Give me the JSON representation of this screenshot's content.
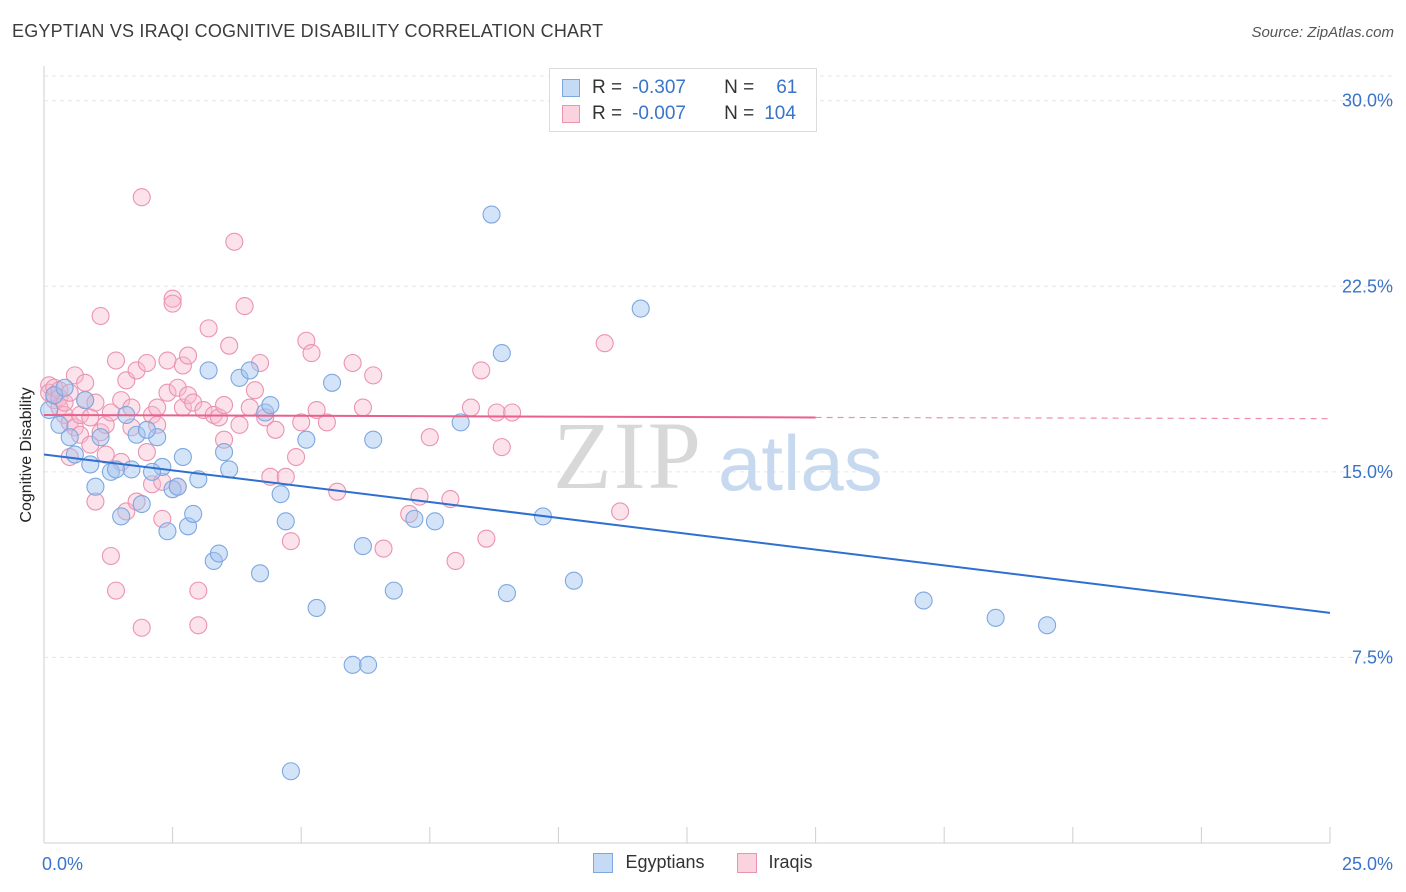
{
  "title": "EGYPTIAN VS IRAQI COGNITIVE DISABILITY CORRELATION CHART",
  "source": "Source: ZipAtlas.com",
  "watermark": {
    "zip": "ZIP",
    "atlas": "atlas"
  },
  "stats": [
    {
      "r_label": "R =",
      "r_value": "-0.307",
      "n_label": "N =",
      "n_value": "61",
      "color": "#a9c8f0",
      "border": "#6c9ee0"
    },
    {
      "r_label": "R =",
      "r_value": "-0.007",
      "n_label": "N =",
      "n_value": "104",
      "color": "#f8c0d2",
      "border": "#e88aa8"
    }
  ],
  "legend": [
    {
      "label": "Egyptians",
      "color": "#c5daf5",
      "border": "#7ea7e0"
    },
    {
      "label": "Iraqis",
      "color": "#fbd3df",
      "border": "#eb93b1"
    }
  ],
  "chart_data": {
    "type": "scatter",
    "title": "EGYPTIAN VS IRAQI COGNITIVE DISABILITY CORRELATION CHART",
    "xlabel": "",
    "ylabel": "Cognitive Disability",
    "xlim": [
      0,
      25
    ],
    "ylim": [
      0,
      31
    ],
    "x_ticks": [
      0,
      2.5,
      5,
      7.5,
      10,
      12.5,
      15,
      17.5,
      20,
      22.5,
      25
    ],
    "x_tick_labels": [
      "0.0%",
      "",
      "",
      "",
      "",
      "",
      "",
      "",
      "",
      "",
      "25.0%"
    ],
    "y_ticks": [
      7.5,
      15,
      22.5,
      30
    ],
    "y_tick_labels": [
      "7.5%",
      "15.0%",
      "22.5%",
      "30.0%"
    ],
    "grid": true,
    "series": [
      {
        "name": "Egyptians",
        "color": "#7ea7e0",
        "fill": "rgba(160,195,240,0.45)",
        "trend": {
          "x": [
            0,
            25
          ],
          "y": [
            15.7,
            9.3
          ],
          "color": "#2e6fd0"
        },
        "x": [
          0.1,
          0.3,
          0.5,
          0.6,
          0.9,
          1.0,
          1.1,
          1.3,
          1.5,
          1.6,
          1.7,
          1.8,
          1.9,
          2.2,
          2.3,
          2.4,
          2.5,
          2.6,
          2.7,
          2.8,
          2.9,
          3.0,
          3.3,
          3.4,
          3.5,
          3.6,
          3.8,
          4.0,
          4.2,
          4.3,
          4.4,
          4.6,
          4.7,
          4.8,
          5.1,
          5.3,
          5.6,
          6.0,
          6.2,
          6.4,
          6.8,
          7.2,
          7.6,
          8.1,
          8.7,
          8.9,
          9.0,
          9.7,
          10.3,
          11.6,
          17.1,
          18.5,
          19.5,
          0.2,
          0.4,
          1.4,
          2.0,
          3.2,
          0.8,
          2.1,
          6.3
        ],
        "y": [
          17.5,
          16.9,
          16.4,
          15.7,
          15.3,
          14.4,
          16.4,
          15.0,
          13.2,
          17.3,
          15.1,
          16.5,
          13.7,
          16.4,
          15.2,
          12.6,
          14.3,
          14.4,
          15.6,
          12.8,
          13.3,
          14.7,
          11.4,
          11.7,
          15.8,
          15.1,
          18.8,
          19.1,
          10.9,
          17.4,
          17.7,
          14.1,
          13.0,
          2.9,
          16.3,
          9.5,
          18.6,
          7.2,
          12.0,
          16.3,
          10.2,
          13.1,
          13.0,
          17.0,
          25.4,
          19.8,
          10.1,
          13.2,
          10.6,
          21.6,
          9.8,
          9.1,
          8.8,
          18.1,
          18.4,
          15.1,
          16.7,
          19.1,
          17.9,
          15.0,
          7.2
        ]
      },
      {
        "name": "Iraqis",
        "color": "#eb93b1",
        "fill": "rgba(248,185,205,0.42)",
        "trend": {
          "x": [
            0,
            15
          ],
          "y": [
            17.3,
            17.2
          ],
          "x_dash_end": 25,
          "y_dash_end": 17.15,
          "color": "#e8608c"
        },
        "x": [
          0.1,
          0.1,
          0.2,
          0.2,
          0.2,
          0.3,
          0.3,
          0.3,
          0.4,
          0.4,
          0.5,
          0.5,
          0.5,
          0.6,
          0.6,
          0.7,
          0.7,
          0.8,
          0.8,
          0.9,
          0.9,
          1.0,
          1.0,
          1.1,
          1.1,
          1.2,
          1.2,
          1.3,
          1.3,
          1.4,
          1.4,
          1.5,
          1.5,
          1.6,
          1.6,
          1.7,
          1.7,
          1.8,
          1.8,
          1.9,
          1.9,
          2.0,
          2.0,
          2.1,
          2.1,
          2.2,
          2.2,
          2.3,
          2.3,
          2.4,
          2.4,
          2.5,
          2.5,
          2.6,
          2.6,
          2.7,
          2.7,
          2.8,
          2.8,
          2.9,
          3.0,
          3.0,
          3.1,
          3.2,
          3.3,
          3.4,
          3.5,
          3.5,
          3.6,
          3.7,
          3.8,
          3.9,
          4.0,
          4.1,
          4.2,
          4.3,
          4.4,
          4.5,
          4.7,
          4.8,
          4.9,
          5.0,
          5.1,
          5.2,
          5.3,
          5.5,
          5.7,
          6.0,
          6.2,
          6.4,
          6.6,
          7.1,
          7.3,
          7.5,
          7.9,
          8.0,
          8.3,
          8.5,
          8.6,
          8.8,
          8.9,
          9.1,
          10.9,
          11.2
        ],
        "y": [
          18.5,
          18.2,
          17.9,
          18.1,
          18.4,
          17.6,
          18.3,
          18.0,
          17.3,
          17.8,
          15.6,
          18.2,
          17.0,
          18.9,
          16.8,
          17.3,
          16.5,
          17.9,
          18.6,
          17.2,
          16.1,
          17.8,
          13.8,
          16.6,
          21.3,
          15.7,
          16.9,
          17.4,
          11.6,
          19.5,
          10.2,
          17.9,
          15.4,
          13.4,
          18.7,
          16.8,
          17.6,
          13.8,
          19.1,
          26.1,
          8.7,
          15.8,
          19.4,
          17.3,
          14.5,
          16.9,
          17.6,
          14.6,
          13.1,
          19.5,
          18.2,
          22.0,
          21.8,
          18.4,
          14.4,
          19.3,
          17.6,
          19.7,
          18.1,
          17.8,
          10.2,
          8.8,
          17.5,
          20.8,
          17.3,
          17.2,
          16.3,
          17.7,
          20.1,
          24.3,
          16.9,
          21.7,
          17.6,
          18.3,
          19.4,
          17.2,
          14.8,
          16.7,
          14.8,
          12.2,
          15.6,
          17.0,
          20.3,
          19.8,
          17.5,
          17.0,
          14.2,
          19.4,
          17.6,
          18.9,
          11.9,
          13.3,
          14.0,
          16.4,
          13.9,
          11.4,
          17.6,
          19.1,
          12.3,
          17.4,
          16.0,
          17.4,
          20.2,
          13.4
        ]
      }
    ]
  }
}
